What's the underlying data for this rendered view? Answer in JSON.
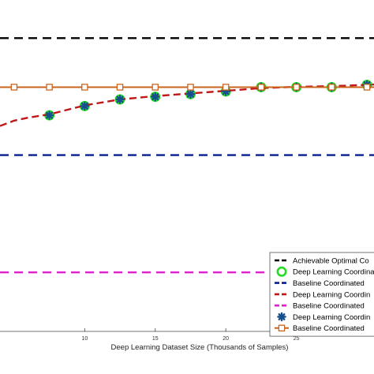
{
  "chart_data": {
    "type": "line",
    "xlabel": "Deep Learning Dataset Size (Thousands of Samples)",
    "ylabel": "",
    "title": "",
    "x_ticks": [
      10,
      15,
      20,
      25
    ],
    "xlim": [
      4,
      30.5
    ],
    "ylim": [
      0,
      1
    ],
    "grid": false,
    "legend_position": "bottom-right",
    "series": [
      {
        "name": "Achievable Optimal Co",
        "style": "dashed",
        "color": "#000000",
        "marker": "none",
        "x": [
          4,
          30.5
        ],
        "y": [
          0.885,
          0.885
        ]
      },
      {
        "name": "Deep Learning Coordinate",
        "style": "markers",
        "color": "#22dd22",
        "marker": "circle",
        "x": [
          7.5,
          10,
          12.5,
          15,
          17.5,
          20,
          22.5,
          25,
          27.5,
          30
        ],
        "y": [
          0.652,
          0.68,
          0.7,
          0.708,
          0.716,
          0.724,
          0.737,
          0.737,
          0.737,
          0.744
        ]
      },
      {
        "name": "Baseline Coordinated",
        "style": "dashed",
        "color": "#0a1e8c",
        "marker": "none",
        "x": [
          4,
          30.5
        ],
        "y": [
          0.532,
          0.532
        ]
      },
      {
        "name": "Deep Learning Coordin",
        "style": "dashed",
        "color": "#c01818",
        "marker": "none",
        "x": [
          4,
          5,
          6,
          7.5,
          10,
          12.5,
          15,
          17.5,
          20,
          22.5,
          25,
          27.5,
          30,
          30.5
        ],
        "y": [
          0.62,
          0.636,
          0.645,
          0.655,
          0.682,
          0.7,
          0.71,
          0.718,
          0.726,
          0.734,
          0.738,
          0.74,
          0.744,
          0.745
        ]
      },
      {
        "name": "Baseline Coordinated",
        "style": "dashed",
        "color": "#dd22cc",
        "marker": "none",
        "x": [
          4,
          30.5
        ],
        "y": [
          0.178,
          0.178
        ]
      },
      {
        "name": "Deep Learning Coordin",
        "style": "markers",
        "color": "#14508c",
        "marker": "asterisk",
        "x": [
          7.5,
          10,
          12.5,
          15,
          17.5,
          20,
          22.5,
          25,
          27.5,
          30
        ],
        "y": [
          0.652,
          0.68,
          0.7,
          0.708,
          0.716,
          0.724,
          0.737,
          0.737,
          0.737,
          0.744
        ]
      },
      {
        "name": "Baseline Coordinated",
        "style": "solid",
        "color": "#c8641e",
        "marker": "square",
        "x": [
          4,
          5,
          7.5,
          10,
          12.5,
          15,
          17.5,
          20,
          22.5,
          25,
          27.5,
          30,
          30.5
        ],
        "y": [
          0.737,
          0.737,
          0.737,
          0.737,
          0.737,
          0.737,
          0.737,
          0.737,
          0.737,
          0.737,
          0.737,
          0.737,
          0.737
        ],
        "marker_x": [
          5,
          7.5,
          10,
          12.5,
          15,
          17.5,
          20,
          22.5,
          25,
          27.5,
          30
        ]
      }
    ]
  }
}
